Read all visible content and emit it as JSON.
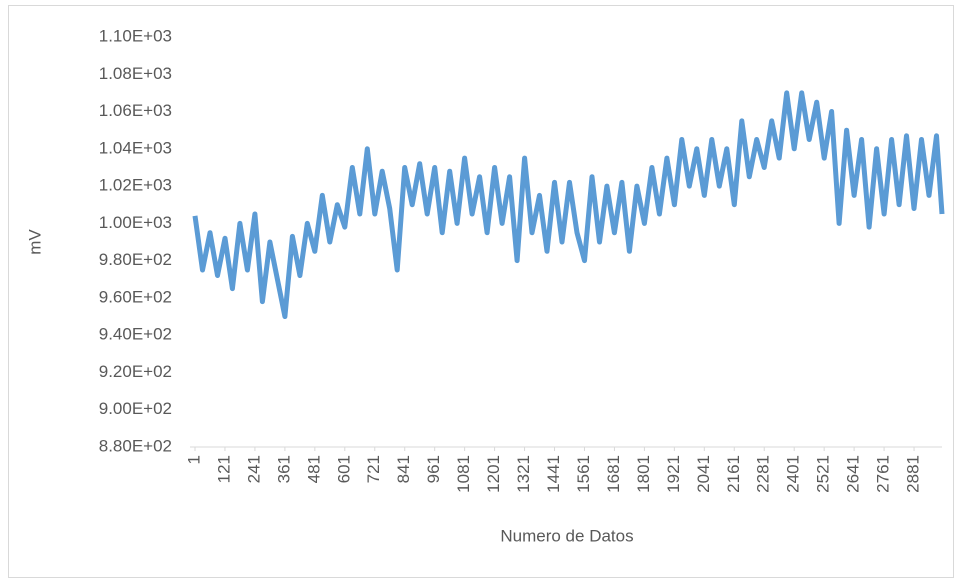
{
  "chart_data": {
    "type": "line",
    "x_label": "Numero de Datos",
    "y_label": "mV",
    "x": [
      1,
      31,
      61,
      91,
      121,
      151,
      181,
      211,
      241,
      271,
      301,
      331,
      361,
      391,
      421,
      451,
      481,
      511,
      541,
      571,
      601,
      631,
      661,
      691,
      721,
      751,
      781,
      811,
      841,
      871,
      901,
      931,
      961,
      991,
      1021,
      1051,
      1081,
      1111,
      1141,
      1171,
      1201,
      1231,
      1261,
      1291,
      1321,
      1351,
      1381,
      1411,
      1441,
      1471,
      1501,
      1531,
      1561,
      1591,
      1621,
      1651,
      1681,
      1711,
      1741,
      1771,
      1801,
      1831,
      1861,
      1891,
      1921,
      1951,
      1981,
      2011,
      2041,
      2071,
      2101,
      2131,
      2161,
      2191,
      2221,
      2251,
      2281,
      2311,
      2341,
      2371,
      2401,
      2431,
      2461,
      2491,
      2521,
      2551,
      2581,
      2611,
      2641,
      2671,
      2701,
      2731,
      2761,
      2791,
      2821,
      2851,
      2881,
      2911,
      2941,
      2971,
      2993
    ],
    "series": [
      {
        "name": "mV",
        "color": "#5b9bd5",
        "values": [
          1004,
          975,
          995,
          972,
          992,
          965,
          1000,
          975,
          1005,
          958,
          990,
          970,
          950,
          993,
          972,
          1000,
          985,
          1015,
          990,
          1010,
          998,
          1030,
          1005,
          1040,
          1005,
          1028,
          1008,
          975,
          1030,
          1010,
          1032,
          1005,
          1030,
          995,
          1028,
          1000,
          1035,
          1005,
          1025,
          995,
          1030,
          1000,
          1025,
          980,
          1035,
          995,
          1015,
          985,
          1022,
          990,
          1022,
          995,
          980,
          1025,
          990,
          1020,
          995,
          1022,
          985,
          1020,
          1000,
          1030,
          1005,
          1035,
          1010,
          1045,
          1020,
          1040,
          1015,
          1045,
          1020,
          1040,
          1010,
          1055,
          1025,
          1045,
          1030,
          1055,
          1035,
          1070,
          1040,
          1070,
          1045,
          1065,
          1035,
          1060,
          1000,
          1050,
          1015,
          1045,
          998,
          1040,
          1005,
          1045,
          1010,
          1047,
          1008,
          1045,
          1015,
          1047,
          1005
        ]
      }
    ],
    "xlim": [
      1,
      2993
    ],
    "xticks": [
      1,
      121,
      241,
      361,
      481,
      601,
      721,
      841,
      961,
      1081,
      1201,
      1321,
      1441,
      1561,
      1681,
      1801,
      1921,
      2041,
      2161,
      2281,
      2401,
      2521,
      2641,
      2761,
      2881
    ],
    "ylim": [
      880,
      1100
    ],
    "yticks": [
      {
        "value": 880,
        "label": "8.80E+02"
      },
      {
        "value": 900,
        "label": "9.00E+02"
      },
      {
        "value": 920,
        "label": "9.20E+02"
      },
      {
        "value": 940,
        "label": "9.40E+02"
      },
      {
        "value": 960,
        "label": "9.60E+02"
      },
      {
        "value": 980,
        "label": "9.80E+02"
      },
      {
        "value": 1000,
        "label": "1.00E+03"
      },
      {
        "value": 1020,
        "label": "1.02E+03"
      },
      {
        "value": 1040,
        "label": "1.04E+03"
      },
      {
        "value": 1060,
        "label": "1.06E+03"
      },
      {
        "value": 1080,
        "label": "1.08E+03"
      },
      {
        "value": 1100,
        "label": "1.10E+03"
      }
    ],
    "grid": false
  }
}
